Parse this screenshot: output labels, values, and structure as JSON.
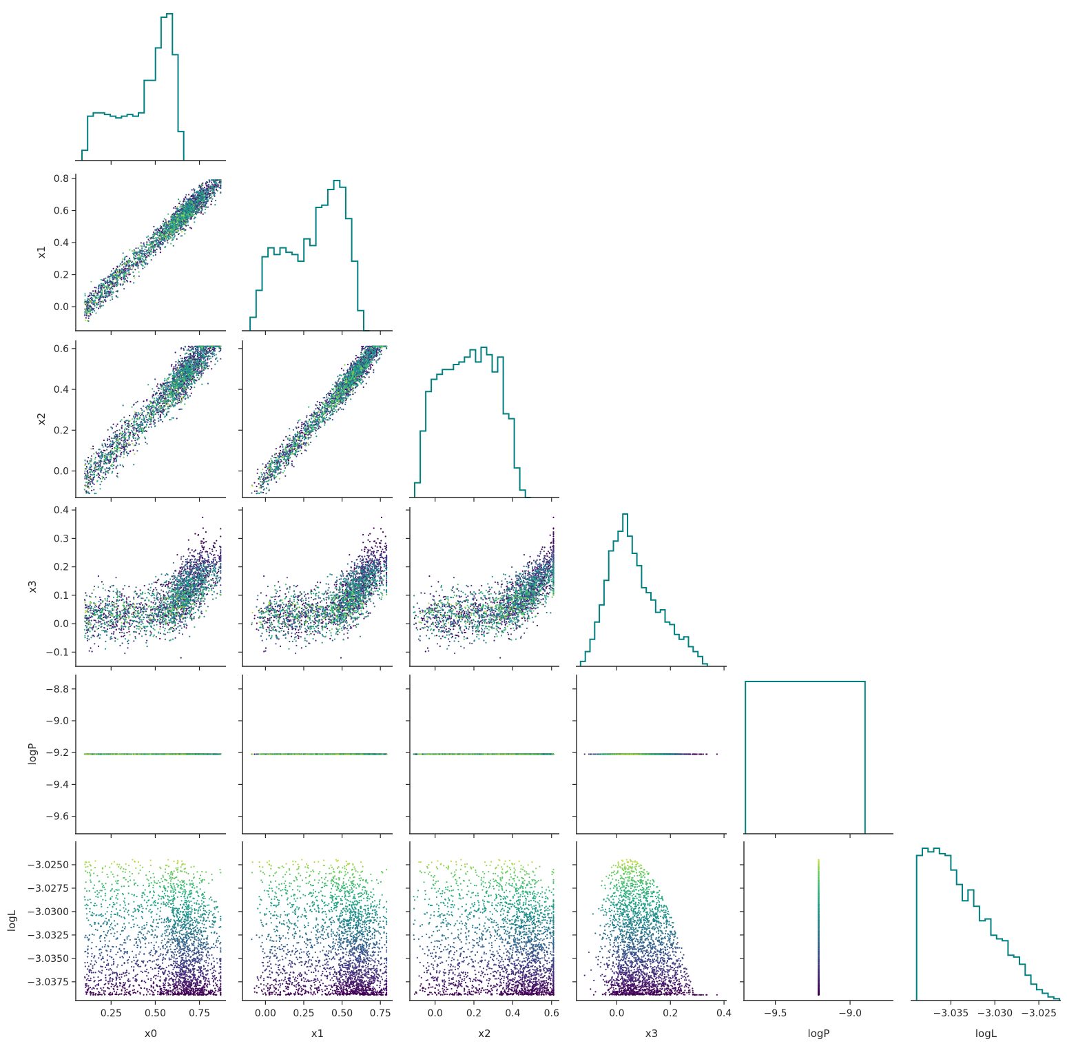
{
  "chart_data": {
    "type": "scatter",
    "variables": [
      "x0",
      "x1",
      "x2",
      "x3",
      "logP",
      "logL"
    ],
    "diag_color": "#008080",
    "colormap": "viridis",
    "color_by": "logL",
    "n_points": 2600,
    "axes": {
      "x0": {
        "label": "x0",
        "range": [
          0.05,
          0.9
        ],
        "ticks": [
          0.25,
          0.5,
          0.75
        ],
        "tick_labels": [
          "0.25",
          "0.50",
          "0.75"
        ]
      },
      "x1": {
        "label": "x1",
        "range": [
          -0.15,
          0.83
        ],
        "ticks": [
          0.0,
          0.2,
          0.4,
          0.6,
          0.8
        ],
        "tick_labels": [
          "0.0",
          "0.2",
          "0.4",
          "0.6",
          "0.8"
        ],
        "x_ticks": [
          0.0,
          0.25,
          0.5,
          0.75
        ],
        "x_tick_labels": [
          "0.00",
          "0.25",
          "0.50",
          "0.75"
        ]
      },
      "x2": {
        "label": "x2",
        "range": [
          -0.13,
          0.64
        ],
        "ticks": [
          0.0,
          0.2,
          0.4,
          0.6
        ],
        "tick_labels": [
          "0.0",
          "0.2",
          "0.4",
          "0.6"
        ]
      },
      "x3": {
        "label": "x3",
        "range": [
          -0.15,
          0.41
        ],
        "ticks": [
          -0.1,
          0.0,
          0.1,
          0.2,
          0.3,
          0.4
        ],
        "tick_labels": [
          "−0.1",
          "0.0",
          "0.1",
          "0.2",
          "0.3",
          "0.4"
        ],
        "x_ticks": [
          0.0,
          0.2,
          0.4
        ],
        "x_tick_labels": [
          "0.0",
          "0.2",
          "0.4"
        ]
      },
      "logP": {
        "label": "logP",
        "range": [
          -9.71,
          -8.71
        ],
        "ticks": [
          -9.6,
          -9.4,
          -9.2,
          -9.0,
          -8.8
        ],
        "tick_labels": [
          "−9.6",
          "−9.4",
          "−9.2",
          "−9.0",
          "−8.8"
        ],
        "x_ticks": [
          -9.5,
          -9.0
        ],
        "x_tick_labels": [
          "−9.5",
          "−9.0"
        ]
      },
      "logL": {
        "label": "logL",
        "range": [
          -3.0395,
          -3.0225
        ],
        "ticks": [
          -3.0375,
          -3.035,
          -3.0325,
          -3.03,
          -3.0275,
          -3.025
        ],
        "tick_labels": [
          "−3.0375",
          "−3.0350",
          "−3.0325",
          "−3.0300",
          "−3.0275",
          "−3.0250"
        ],
        "x_ticks": [
          -3.035,
          -3.03,
          -3.025
        ],
        "x_tick_labels": [
          "−3.035",
          "−3.030",
          "−3.025"
        ]
      }
    },
    "histograms": {
      "x0": {
        "edges_from": 0.085,
        "bin_width": 0.032,
        "counts": [
          0.06,
          0.26,
          0.28,
          0.28,
          0.27,
          0.26,
          0.25,
          0.26,
          0.27,
          0.26,
          0.28,
          0.47,
          0.47,
          0.66,
          0.84,
          0.86,
          0.62,
          0.17
        ]
      },
      "x1": {
        "edges_from": -0.1,
        "bin_width": 0.039,
        "counts": [
          0.06,
          0.18,
          0.33,
          0.37,
          0.34,
          0.37,
          0.35,
          0.34,
          0.31,
          0.41,
          0.38,
          0.55,
          0.56,
          0.63,
          0.67,
          0.64,
          0.5,
          0.31,
          0.09,
          0.0
        ]
      },
      "x2": {
        "edges_from": -0.105,
        "bin_width": 0.0285,
        "counts": [
          0.06,
          0.27,
          0.43,
          0.48,
          0.5,
          0.52,
          0.52,
          0.54,
          0.55,
          0.57,
          0.6,
          0.55,
          0.61,
          0.58,
          0.51,
          0.57,
          0.34,
          0.32,
          0.12,
          0.03,
          0.0
        ]
      },
      "x3": {
        "edges_from": -0.135,
        "bin_width": 0.0175,
        "counts": [
          0.02,
          0.06,
          0.11,
          0.18,
          0.25,
          0.35,
          0.47,
          0.51,
          0.55,
          0.62,
          0.53,
          0.46,
          0.41,
          0.32,
          0.3,
          0.27,
          0.22,
          0.23,
          0.18,
          0.17,
          0.13,
          0.11,
          0.12,
          0.08,
          0.06,
          0.04,
          0.01
        ]
      },
      "logP": {
        "edges_from": -9.7,
        "bin_width": 0.8,
        "counts": [
          1.0
        ]
      },
      "logL": {
        "edges_from": -3.0389,
        "bin_width": 0.00065,
        "counts": [
          0.8,
          0.84,
          0.82,
          0.84,
          0.81,
          0.8,
          0.72,
          0.64,
          0.55,
          0.61,
          0.52,
          0.44,
          0.45,
          0.36,
          0.34,
          0.33,
          0.25,
          0.24,
          0.2,
          0.14,
          0.09,
          0.06,
          0.04,
          0.02,
          0.01
        ]
      }
    }
  }
}
